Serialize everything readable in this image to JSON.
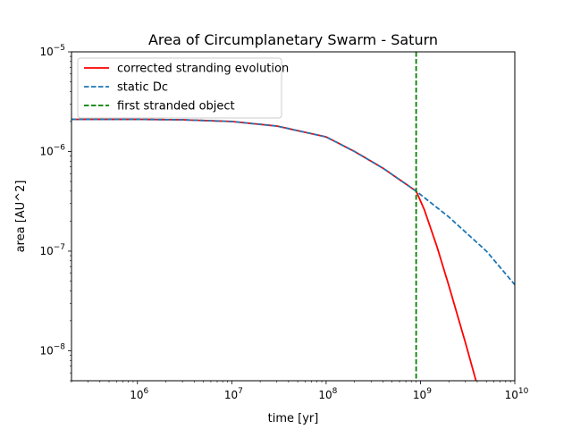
{
  "chart_data": {
    "type": "line",
    "title": "Area of Circumplanetary Swarm - Saturn",
    "xlabel": "time [yr]",
    "ylabel": "area [AU^2]",
    "x_scale": "log",
    "y_scale": "log",
    "xlim": [
      200000,
      10000000000
    ],
    "ylim": [
      5e-09,
      1e-05
    ],
    "x_ticks": [
      {
        "value": 1000000,
        "base": "10",
        "exp": "6"
      },
      {
        "value": 10000000,
        "base": "10",
        "exp": "7"
      },
      {
        "value": 100000000,
        "base": "10",
        "exp": "8"
      },
      {
        "value": 1000000000,
        "base": "10",
        "exp": "9"
      },
      {
        "value": 10000000000,
        "base": "10",
        "exp": "10"
      }
    ],
    "y_ticks": [
      {
        "value": 1e-08,
        "base": "10",
        "exp": "−8"
      },
      {
        "value": 1e-07,
        "base": "10",
        "exp": "−7"
      },
      {
        "value": 1e-06,
        "base": "10",
        "exp": "−6"
      },
      {
        "value": 1e-05,
        "base": "10",
        "exp": "−5"
      }
    ],
    "legend_position": "upper-left",
    "grid": false,
    "series": [
      {
        "name": "corrected stranding evolution",
        "color": "#ff0000",
        "style": "solid",
        "x": [
          200000,
          1000000,
          3000000,
          10000000,
          30000000,
          100000000,
          200000000,
          400000000,
          900000000,
          1100000000,
          1500000000,
          2000000000,
          3000000000,
          4000000000
        ],
        "y": [
          2.1e-06,
          2.1e-06,
          2.08e-06,
          2e-06,
          1.8e-06,
          1.4e-06,
          1e-06,
          6.8e-07,
          4e-07,
          2.6e-07,
          1.1e-07,
          4.5e-08,
          1.2e-08,
          4.5e-09
        ]
      },
      {
        "name": "static Dc",
        "color": "#1f77b4",
        "style": "dashed",
        "x": [
          200000,
          1000000,
          3000000,
          10000000,
          30000000,
          100000000,
          200000000,
          400000000,
          900000000,
          2000000000,
          5000000000,
          10000000000
        ],
        "y": [
          2.1e-06,
          2.1e-06,
          2.08e-06,
          2e-06,
          1.8e-06,
          1.4e-06,
          1e-06,
          6.8e-07,
          4e-07,
          2.2e-07,
          1e-07,
          4.6e-08
        ]
      },
      {
        "name": "first stranded object",
        "color": "#008000",
        "style": "dashed",
        "vertical_line_x": 900000000
      }
    ]
  }
}
